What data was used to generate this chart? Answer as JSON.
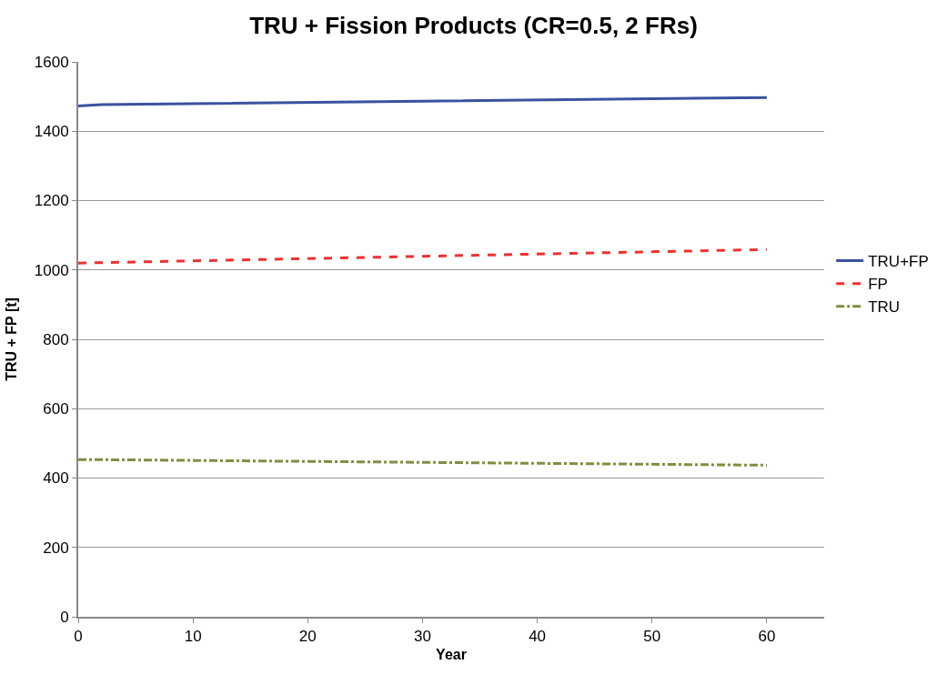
{
  "chart_data": {
    "type": "line",
    "title": "TRU + Fission Products (CR=0.5, 2 FRs)",
    "xlabel": "Year",
    "ylabel": "TRU + FP [t]",
    "x": [
      0,
      2,
      60
    ],
    "series": [
      {
        "name": "TRU+FP",
        "color": "#3a52a0",
        "values": [
          1473,
          1477,
          1497
        ],
        "line_style": "solid"
      },
      {
        "name": "FP",
        "color": "#f03030",
        "values": [
          1020,
          1021,
          1059
        ],
        "line_style": "dashed"
      },
      {
        "name": "TRU",
        "color": "#7f8f3f",
        "values": [
          453,
          453,
          437
        ],
        "line_style": "dashdot"
      }
    ],
    "xlim": [
      0,
      65
    ],
    "xticks": [
      0,
      10,
      20,
      30,
      40,
      50,
      60
    ],
    "ylim": [
      0,
      1600
    ],
    "yticks": [
      0,
      200,
      400,
      600,
      800,
      1000,
      1200,
      1400,
      1600
    ],
    "grid": "y",
    "legend": "right",
    "marker": "none"
  }
}
